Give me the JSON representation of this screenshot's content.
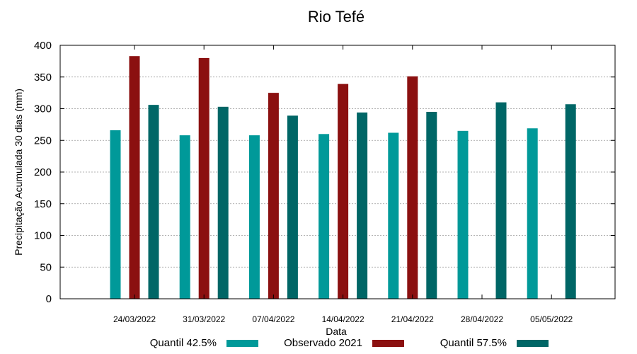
{
  "chart_data": {
    "type": "bar",
    "title": "Rio Tefé",
    "xlabel": "Data",
    "ylabel": "Precipitação Acumulada 30 dias (mm)",
    "ylim": [
      0,
      400
    ],
    "yticks": [
      0,
      50,
      100,
      150,
      200,
      250,
      300,
      350,
      400
    ],
    "grid": true,
    "legend_position": "bottom",
    "categories": [
      "24/03/2022",
      "31/03/2022",
      "07/04/2022",
      "14/04/2022",
      "21/04/2022",
      "28/04/2022",
      "05/05/2022"
    ],
    "series": [
      {
        "name": "Quantil 42.5%",
        "color": "#009999",
        "values": [
          266,
          258,
          258,
          260,
          262,
          265,
          269
        ]
      },
      {
        "name": "Observado 2021",
        "color": "#8b1010",
        "values": [
          383,
          380,
          325,
          339,
          351,
          null,
          null
        ]
      },
      {
        "name": "Quantil 57.5%",
        "color": "#006666",
        "values": [
          306,
          303,
          289,
          294,
          295,
          310,
          307
        ]
      }
    ]
  }
}
